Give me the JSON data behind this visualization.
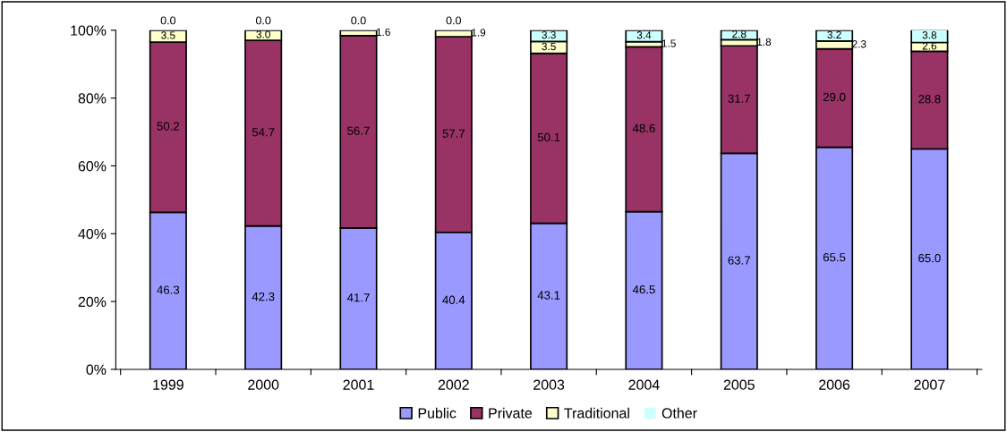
{
  "chart_data": {
    "type": "bar",
    "stacked": true,
    "categories": [
      "1999",
      "2000",
      "2001",
      "2002",
      "2003",
      "2004",
      "2005",
      "2006",
      "2007"
    ],
    "series": [
      {
        "name": "Public",
        "color": "#9999ff",
        "values": [
          46.3,
          42.3,
          41.7,
          40.4,
          43.1,
          46.5,
          63.7,
          65.5,
          65.0
        ],
        "value_labels": [
          "46.3",
          "42.3",
          "41.7",
          "40.4",
          "43.1",
          "46.5",
          "63.7",
          "65.5",
          "65.0"
        ]
      },
      {
        "name": "Private",
        "color": "#993366",
        "values": [
          50.2,
          54.7,
          56.7,
          57.7,
          50.1,
          48.6,
          31.7,
          29.0,
          28.8
        ],
        "value_labels": [
          "50.2",
          "54.7",
          "56.7",
          "57.7",
          "50.1",
          "48.6",
          "31.7",
          "29.0",
          "28.8"
        ]
      },
      {
        "name": "Traditional",
        "color": "#ffffcc",
        "values": [
          3.5,
          3.0,
          1.6,
          1.9,
          3.5,
          1.5,
          1.8,
          2.3,
          2.6
        ],
        "value_labels": [
          "3.5",
          "3.0",
          "1.6",
          "1.9",
          "3.5",
          "1.5",
          "1.8",
          "2.3",
          "2.6"
        ]
      },
      {
        "name": "Other",
        "color": "#ccffff",
        "values": [
          0.0,
          0.0,
          0.0,
          0.0,
          3.3,
          3.4,
          2.8,
          3.2,
          3.8
        ],
        "value_labels": [
          "0.0",
          "0.0",
          "0.0",
          "0.0",
          "3.3",
          "3.4",
          "2.8",
          "3.2",
          "3.8"
        ]
      }
    ],
    "ylim": [
      0,
      100
    ],
    "yticks": [
      {
        "value": 0,
        "label": "0%"
      },
      {
        "value": 20,
        "label": "20%"
      },
      {
        "value": 40,
        "label": "40%"
      },
      {
        "value": 60,
        "label": "60%"
      },
      {
        "value": 80,
        "label": "80%"
      },
      {
        "value": 100,
        "label": "100%"
      }
    ],
    "data_labels": true,
    "grid": false,
    "legend": "bottom"
  }
}
